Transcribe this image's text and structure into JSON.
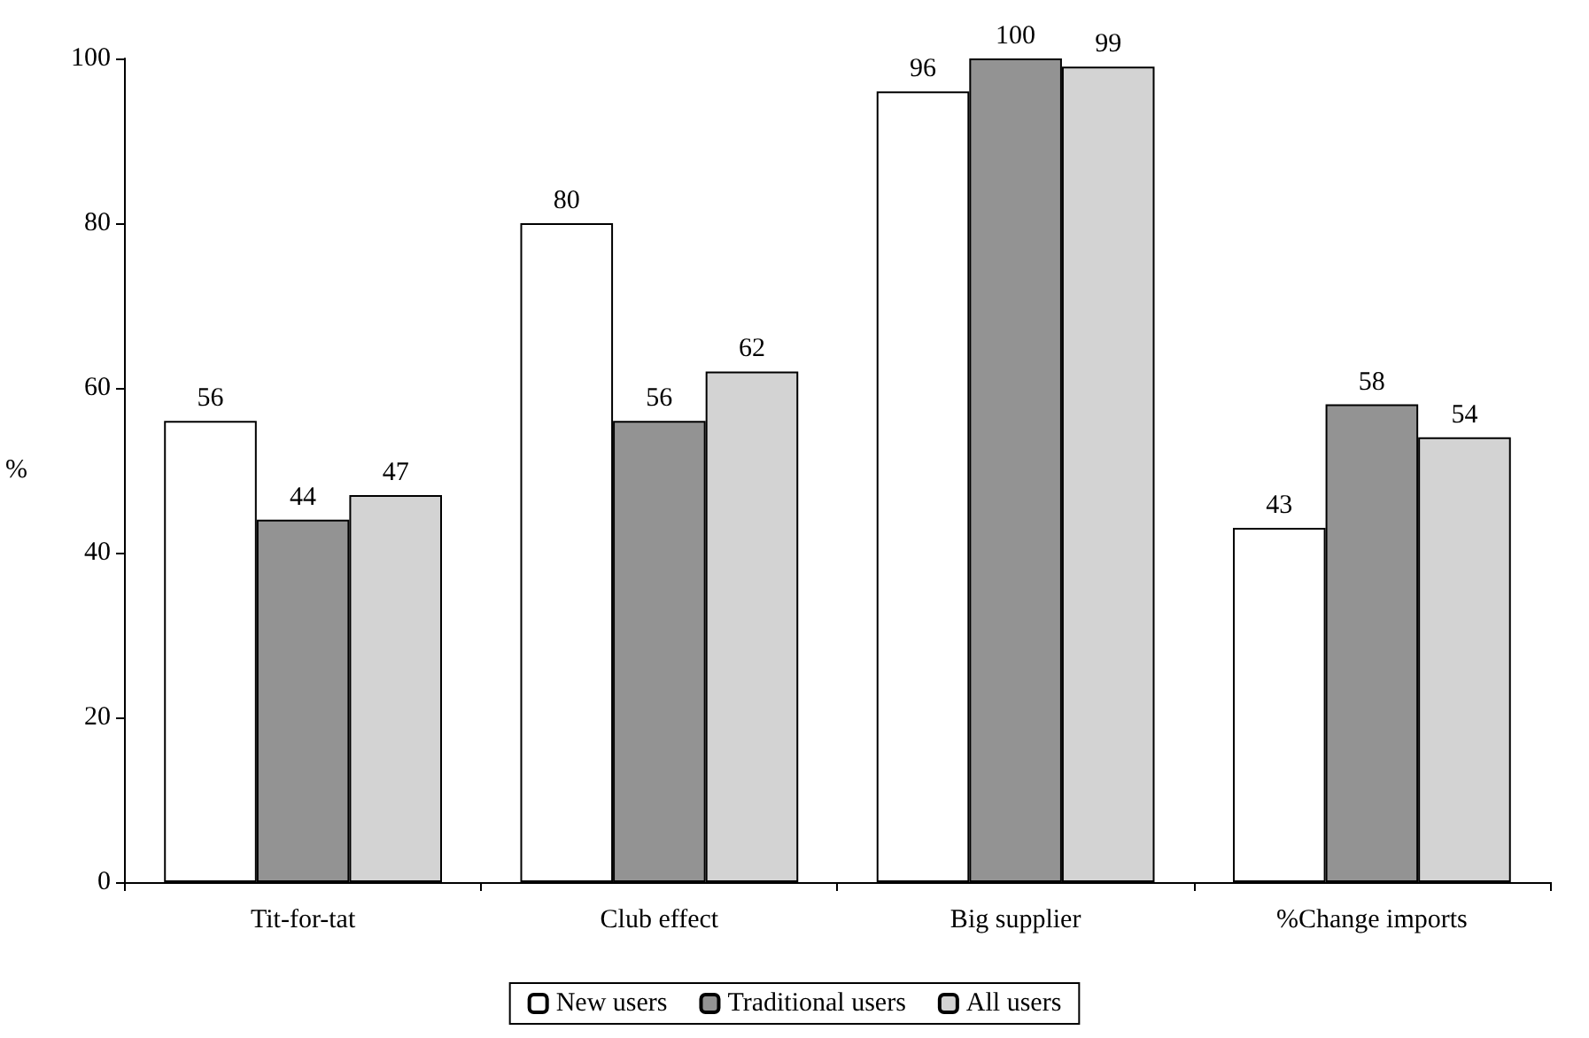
{
  "chart_data": {
    "type": "bar",
    "ylabel": "%",
    "categories": [
      "Tit-for-tat",
      "Club effect",
      "Big supplier",
      "%Change imports"
    ],
    "series": [
      {
        "name": "New users",
        "color": "#ffffff",
        "values": [
          56,
          80,
          96,
          43
        ]
      },
      {
        "name": "Traditional users",
        "color": "#939393",
        "values": [
          44,
          56,
          100,
          58
        ]
      },
      {
        "name": "All users",
        "color": "#d3d3d3",
        "values": [
          47,
          62,
          99,
          54
        ]
      }
    ],
    "ylim": [
      0,
      100
    ],
    "yticks": [
      0,
      20,
      40,
      60,
      80,
      100
    ],
    "grid": false,
    "legend": "bottom",
    "data_labels": true
  }
}
